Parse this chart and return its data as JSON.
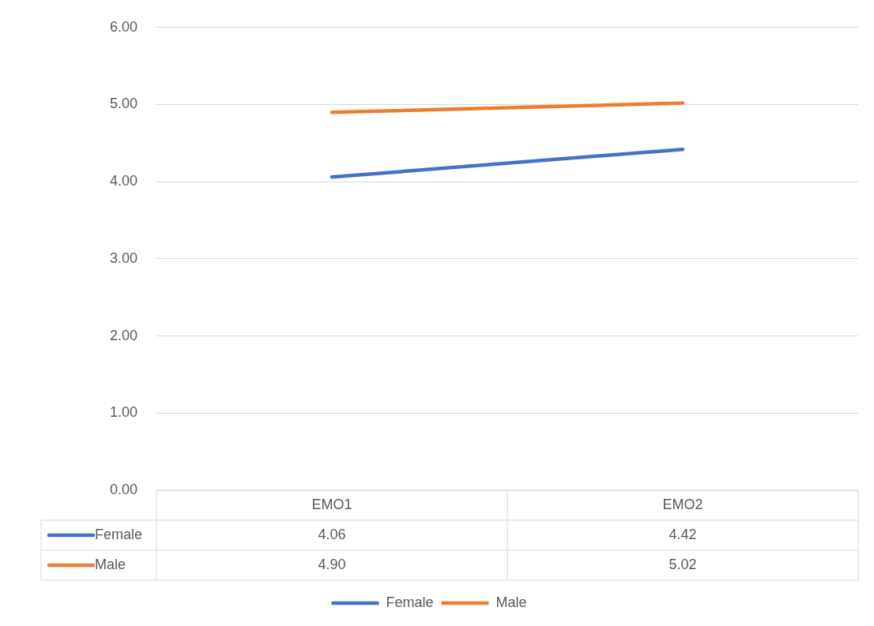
{
  "chart_data": {
    "type": "line",
    "categories": [
      "EMO1",
      "EMO2"
    ],
    "series": [
      {
        "name": "Female",
        "color": "#4472c4",
        "values": [
          4.06,
          4.42
        ],
        "value_labels": [
          "4.06",
          "4.42"
        ]
      },
      {
        "name": "Male",
        "color": "#ed7d31",
        "values": [
          4.9,
          5.02
        ],
        "value_labels": [
          "4.90",
          "5.02"
        ]
      }
    ],
    "ylim": [
      0,
      6
    ],
    "yticks": [
      {
        "value": 0,
        "label": "0.00"
      },
      {
        "value": 1,
        "label": "1.00"
      },
      {
        "value": 2,
        "label": "2.00"
      },
      {
        "value": 3,
        "label": "3.00"
      },
      {
        "value": 4,
        "label": "4.00"
      },
      {
        "value": 5,
        "label": "5.00"
      },
      {
        "value": 6,
        "label": "6.00"
      }
    ],
    "grid": "y",
    "legend": "bottom",
    "marker": "none",
    "line_style": "solid"
  }
}
